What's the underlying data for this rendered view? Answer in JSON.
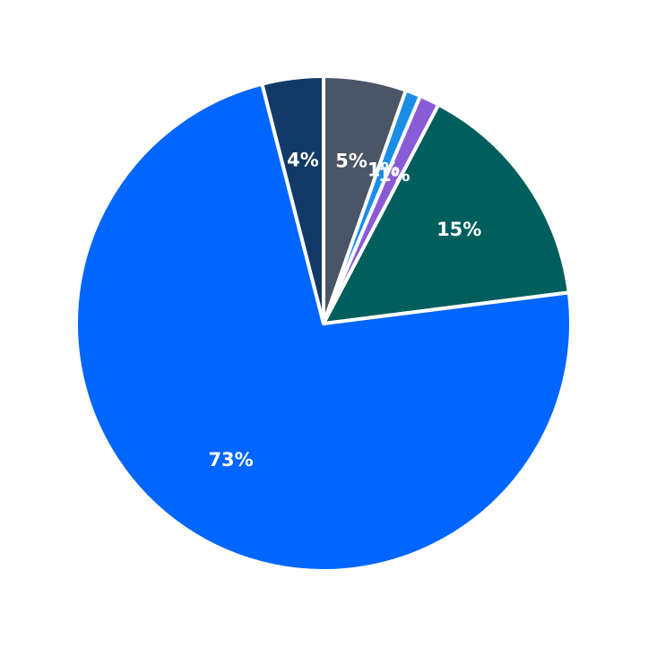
{
  "chart_data": {
    "type": "pie",
    "start_angle_deg": 90,
    "direction": "clockwise",
    "slices": [
      {
        "label": "5%",
        "value": 5.4,
        "color": "#4a5565"
      },
      {
        "label": "1%",
        "value": 1.0,
        "color": "#1a8ee6"
      },
      {
        "label": "1%",
        "value": 1.3,
        "color": "#8a5bd6"
      },
      {
        "label": "15%",
        "value": 15.3,
        "color": "#005e5c"
      },
      {
        "label": "73%",
        "value": 73.0,
        "color": "#0066ff"
      },
      {
        "label": "4%",
        "value": 4.0,
        "color": "#133a66"
      }
    ]
  }
}
